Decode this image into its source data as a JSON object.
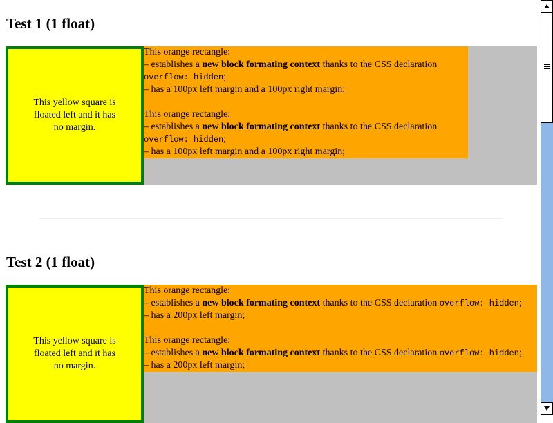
{
  "tests": [
    {
      "heading": "Test 1 (1 float)",
      "yellow_text": "This yellow square is floated left and it has no margin.",
      "blocks": [
        {
          "line1": "This orange rectangle:",
          "pre": "– establishes a ",
          "bold": "new block formating context",
          "mid": " thanks to the CSS declaration ",
          "code": "overflow: hidden",
          "post": ";",
          "margin_line": "– has a 100px left margin and a 100px right margin;"
        },
        {
          "line1": "This orange rectangle:",
          "pre": "– establishes a ",
          "bold": "new block formating context",
          "mid": " thanks to the CSS declaration ",
          "code": "overflow: hidden",
          "post": ";",
          "margin_line": "– has a 100px left margin and a 100px right margin;"
        }
      ]
    },
    {
      "heading": "Test 2 (1 float)",
      "yellow_text": "This yellow square is floated left and it has no margin.",
      "blocks": [
        {
          "line1": "This orange rectangle:",
          "pre": "– establishes a ",
          "bold": "new block formating context",
          "mid": " thanks to the CSS declaration ",
          "code": "overflow: hidden",
          "post": ";",
          "margin_line": "– has a 200px left margin;"
        },
        {
          "line1": "This orange rectangle:",
          "pre": "– establishes a ",
          "bold": "new block formating context",
          "mid": " thanks to the CSS declaration ",
          "code": "overflow: hidden",
          "post": ";",
          "margin_line": "– has a 200px left margin;"
        }
      ]
    }
  ],
  "colors": {
    "yellow": "#ffff00",
    "orange": "#ffa500",
    "green_border": "#008000",
    "container_gray": "#c0c0c0",
    "scrollbar_track": "#8fb8e8"
  },
  "scrollbar": {
    "up_icon": "arrow-up-icon",
    "down_icon": "arrow-down-icon"
  }
}
